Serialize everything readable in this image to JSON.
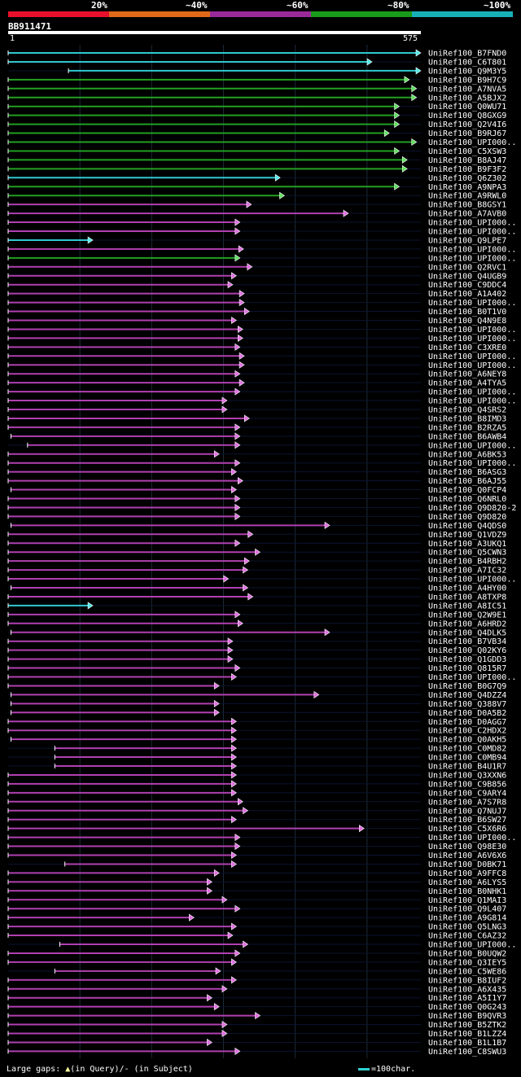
{
  "header": {
    "percent_labels": [
      "20%",
      "~40%",
      "~60%",
      "~80%",
      "~100%"
    ],
    "colors": [
      "#e8102a",
      "#e06a1a",
      "#9a2a9a",
      "#1a9a1a",
      "#18b0b8"
    ],
    "query_id": "BB911471",
    "start": "1",
    "end": "575"
  },
  "legend": {
    "text_prefix": "Large gaps: ",
    "gap_query_marker": "▲",
    "gap_query_text": "(in Query)/",
    "gap_subject_text": "- (in Subject)",
    "scale_text": "=100char."
  },
  "chart_data": {
    "type": "alignment",
    "query_length": 575,
    "hits": [
      {
        "label": "UniRef100_B7FND0",
        "start": 1,
        "end": 575,
        "color": "cyan"
      },
      {
        "label": "UniRef100_C6T801",
        "start": 1,
        "end": 507,
        "color": "cyan"
      },
      {
        "label": "UniRef100_Q9M3Y5",
        "start": 85,
        "end": 575,
        "color": "cyan"
      },
      {
        "label": "UniRef100_B9H7C9",
        "start": 1,
        "end": 559,
        "color": "green"
      },
      {
        "label": "UniRef100_A7NVA5",
        "start": 1,
        "end": 569,
        "color": "green"
      },
      {
        "label": "UniRef100_A5BJX2",
        "start": 1,
        "end": 569,
        "color": "green"
      },
      {
        "label": "UniRef100_Q0WU71",
        "start": 1,
        "end": 545,
        "color": "green"
      },
      {
        "label": "UniRef100_Q8GXG9",
        "start": 1,
        "end": 545,
        "color": "green"
      },
      {
        "label": "UniRef100_Q2V4I6",
        "start": 1,
        "end": 545,
        "color": "green"
      },
      {
        "label": "UniRef100_B9RJ67",
        "start": 1,
        "end": 531,
        "color": "green"
      },
      {
        "label": "UniRef100_UPI000..",
        "start": 1,
        "end": 569,
        "color": "green"
      },
      {
        "label": "UniRef100_C5XSW3",
        "start": 1,
        "end": 545,
        "color": "green"
      },
      {
        "label": "UniRef100_B8AJ47",
        "start": 1,
        "end": 556,
        "color": "green"
      },
      {
        "label": "UniRef100_B9F3F2",
        "start": 1,
        "end": 556,
        "color": "green"
      },
      {
        "label": "UniRef100_Q6Z302",
        "start": 1,
        "end": 379,
        "color": "cyan"
      },
      {
        "label": "UniRef100_A9NPA3",
        "start": 1,
        "end": 545,
        "color": "green"
      },
      {
        "label": "UniRef100_A9RWL0",
        "start": 1,
        "end": 385,
        "color": "green"
      },
      {
        "label": "UniRef100_B8GSY1",
        "start": 1,
        "end": 339,
        "color": "magenta"
      },
      {
        "label": "UniRef100_A7AVB0",
        "start": 1,
        "end": 474,
        "color": "magenta"
      },
      {
        "label": "UniRef100_UPI000..",
        "start": 1,
        "end": 323,
        "color": "magenta"
      },
      {
        "label": "UniRef100_UPI000..",
        "start": 1,
        "end": 323,
        "color": "magenta"
      },
      {
        "label": "UniRef100_Q9LPE7",
        "start": 1,
        "end": 118,
        "color": "cyan"
      },
      {
        "label": "UniRef100_UPI000..",
        "start": 1,
        "end": 328,
        "color": "magenta"
      },
      {
        "label": "UniRef100_UPI000..",
        "start": 1,
        "end": 323,
        "color": "green"
      },
      {
        "label": "UniRef100_Q2RVC1",
        "start": 1,
        "end": 340,
        "color": "magenta"
      },
      {
        "label": "UniRef100_Q4UGB9",
        "start": 1,
        "end": 318,
        "color": "magenta"
      },
      {
        "label": "UniRef100_C9DDC4",
        "start": 1,
        "end": 313,
        "color": "magenta"
      },
      {
        "label": "UniRef100_A1A402",
        "start": 1,
        "end": 329,
        "color": "magenta"
      },
      {
        "label": "UniRef100_UPI000..",
        "start": 1,
        "end": 329,
        "color": "magenta"
      },
      {
        "label": "UniRef100_B0T1V0",
        "start": 1,
        "end": 336,
        "color": "magenta"
      },
      {
        "label": "UniRef100_Q4N9E8",
        "start": 1,
        "end": 318,
        "color": "magenta"
      },
      {
        "label": "UniRef100_UPI000..",
        "start": 1,
        "end": 327,
        "color": "magenta"
      },
      {
        "label": "UniRef100_UPI000..",
        "start": 1,
        "end": 327,
        "color": "magenta"
      },
      {
        "label": "UniRef100_C3XRE0",
        "start": 1,
        "end": 323,
        "color": "magenta"
      },
      {
        "label": "UniRef100_UPI000..",
        "start": 1,
        "end": 329,
        "color": "magenta"
      },
      {
        "label": "UniRef100_UPI000..",
        "start": 1,
        "end": 329,
        "color": "magenta"
      },
      {
        "label": "UniRef100_A6NEY8",
        "start": 1,
        "end": 323,
        "color": "magenta"
      },
      {
        "label": "UniRef100_A4TYA5",
        "start": 1,
        "end": 329,
        "color": "magenta"
      },
      {
        "label": "UniRef100_UPI000..",
        "start": 1,
        "end": 323,
        "color": "magenta"
      },
      {
        "label": "UniRef100_UPI000..",
        "start": 1,
        "end": 305,
        "color": "magenta"
      },
      {
        "label": "UniRef100_Q4SRS2",
        "start": 1,
        "end": 305,
        "color": "magenta"
      },
      {
        "label": "UniRef100_B8IMD3",
        "start": 1,
        "end": 336,
        "color": "magenta"
      },
      {
        "label": "UniRef100_B2RZA5",
        "start": 1,
        "end": 323,
        "color": "magenta"
      },
      {
        "label": "UniRef100_B6AWB4",
        "start": 5,
        "end": 323,
        "color": "magenta"
      },
      {
        "label": "UniRef100_UPI000..",
        "start": 28,
        "end": 323,
        "color": "magenta"
      },
      {
        "label": "UniRef100_A6BK53",
        "start": 1,
        "end": 294,
        "color": "magenta"
      },
      {
        "label": "UniRef100_UPI000..",
        "start": 1,
        "end": 323,
        "color": "magenta"
      },
      {
        "label": "UniRef100_B6ASG3",
        "start": 1,
        "end": 318,
        "color": "magenta"
      },
      {
        "label": "UniRef100_B6AJ55",
        "start": 1,
        "end": 327,
        "color": "magenta"
      },
      {
        "label": "UniRef100_Q0FCP4",
        "start": 5,
        "end": 318,
        "color": "magenta"
      },
      {
        "label": "UniRef100_Q6NRL0",
        "start": 1,
        "end": 323,
        "color": "magenta"
      },
      {
        "label": "UniRef100_Q9D820-2",
        "start": 1,
        "end": 323,
        "color": "magenta"
      },
      {
        "label": "UniRef100_Q9D820",
        "start": 1,
        "end": 323,
        "color": "magenta"
      },
      {
        "label": "UniRef100_Q4QDS0",
        "start": 5,
        "end": 448,
        "color": "magenta"
      },
      {
        "label": "UniRef100_Q1VDZ9",
        "start": 1,
        "end": 341,
        "color": "magenta"
      },
      {
        "label": "UniRef100_A3UKQ1",
        "start": 1,
        "end": 323,
        "color": "magenta"
      },
      {
        "label": "UniRef100_Q5CWN3",
        "start": 1,
        "end": 351,
        "color": "magenta"
      },
      {
        "label": "UniRef100_B4RBH2",
        "start": 1,
        "end": 336,
        "color": "magenta"
      },
      {
        "label": "UniRef100_A7IC32",
        "start": 1,
        "end": 334,
        "color": "magenta"
      },
      {
        "label": "UniRef100_UPI000..",
        "start": 1,
        "end": 307,
        "color": "magenta"
      },
      {
        "label": "UniRef100_A4HY00",
        "start": 5,
        "end": 334,
        "color": "magenta"
      },
      {
        "label": "UniRef100_A8TXP8",
        "start": 1,
        "end": 341,
        "color": "magenta"
      },
      {
        "label": "UniRef100_A8IC51",
        "start": 1,
        "end": 118,
        "color": "cyan"
      },
      {
        "label": "UniRef100_Q2W9E1",
        "start": 1,
        "end": 323,
        "color": "magenta"
      },
      {
        "label": "UniRef100_A6HRD2",
        "start": 1,
        "end": 327,
        "color": "magenta"
      },
      {
        "label": "UniRef100_Q4DLK5",
        "start": 5,
        "end": 448,
        "color": "magenta"
      },
      {
        "label": "UniRef100_B7VB34",
        "start": 1,
        "end": 313,
        "color": "magenta"
      },
      {
        "label": "UniRef100_Q02KY6",
        "start": 1,
        "end": 313,
        "color": "magenta"
      },
      {
        "label": "UniRef100_Q1GDD3",
        "start": 1,
        "end": 313,
        "color": "magenta"
      },
      {
        "label": "UniRef100_Q815R7",
        "start": 1,
        "end": 323,
        "color": "magenta"
      },
      {
        "label": "UniRef100_UPI000..",
        "start": 1,
        "end": 318,
        "color": "magenta"
      },
      {
        "label": "UniRef100_B0G7Q9",
        "start": 1,
        "end": 294,
        "color": "magenta"
      },
      {
        "label": "UniRef100_Q4DZZ4",
        "start": 5,
        "end": 433,
        "color": "magenta"
      },
      {
        "label": "UniRef100_Q388V7",
        "start": 5,
        "end": 294,
        "color": "magenta"
      },
      {
        "label": "UniRef100_D0A5B2",
        "start": 5,
        "end": 294,
        "color": "magenta"
      },
      {
        "label": "UniRef100_D0AGG7",
        "start": 1,
        "end": 318,
        "color": "magenta"
      },
      {
        "label": "UniRef100_C2HDX2",
        "start": 1,
        "end": 318,
        "color": "magenta"
      },
      {
        "label": "UniRef100_Q0AKH5",
        "start": 5,
        "end": 318,
        "color": "magenta"
      },
      {
        "label": "UniRef100_C0MD82",
        "start": 66,
        "end": 318,
        "color": "magenta"
      },
      {
        "label": "UniRef100_C0MB94",
        "start": 66,
        "end": 318,
        "color": "magenta"
      },
      {
        "label": "UniRef100_B4U1R7",
        "start": 66,
        "end": 318,
        "color": "magenta"
      },
      {
        "label": "UniRef100_Q3XXN6",
        "start": 1,
        "end": 318,
        "color": "magenta"
      },
      {
        "label": "UniRef100_C9B856",
        "start": 1,
        "end": 318,
        "color": "magenta"
      },
      {
        "label": "UniRef100_C9ARY4",
        "start": 1,
        "end": 318,
        "color": "magenta"
      },
      {
        "label": "UniRef100_A7S7R8",
        "start": 1,
        "end": 327,
        "color": "magenta"
      },
      {
        "label": "UniRef100_Q7NUJ7",
        "start": 1,
        "end": 334,
        "color": "magenta"
      },
      {
        "label": "UniRef100_B6SW27",
        "start": 1,
        "end": 318,
        "color": "magenta"
      },
      {
        "label": "UniRef100_C5X6R6",
        "start": 1,
        "end": 496,
        "color": "magenta"
      },
      {
        "label": "UniRef100_UPI000..",
        "start": 1,
        "end": 323,
        "color": "magenta"
      },
      {
        "label": "UniRef100_Q98E30",
        "start": 1,
        "end": 323,
        "color": "magenta"
      },
      {
        "label": "UniRef100_A6V6X6",
        "start": 1,
        "end": 318,
        "color": "magenta"
      },
      {
        "label": "UniRef100_D0BK71",
        "start": 80,
        "end": 318,
        "color": "magenta"
      },
      {
        "label": "UniRef100_A9FFC8",
        "start": 1,
        "end": 294,
        "color": "magenta"
      },
      {
        "label": "UniRef100_A6LYS5",
        "start": 1,
        "end": 284,
        "color": "magenta"
      },
      {
        "label": "UniRef100_B0NHK1",
        "start": 1,
        "end": 284,
        "color": "magenta"
      },
      {
        "label": "UniRef100_Q1MAI3",
        "start": 1,
        "end": 305,
        "color": "magenta"
      },
      {
        "label": "UniRef100_Q9L407",
        "start": 1,
        "end": 323,
        "color": "magenta"
      },
      {
        "label": "UniRef100_A9G814",
        "start": 1,
        "end": 259,
        "color": "magenta"
      },
      {
        "label": "UniRef100_Q5LNG3",
        "start": 1,
        "end": 318,
        "color": "magenta"
      },
      {
        "label": "UniRef100_C6AZ32",
        "start": 1,
        "end": 313,
        "color": "magenta"
      },
      {
        "label": "UniRef100_UPI000..",
        "start": 73,
        "end": 334,
        "color": "magenta"
      },
      {
        "label": "UniRef100_B0UQW2",
        "start": 1,
        "end": 323,
        "color": "magenta"
      },
      {
        "label": "UniRef100_Q3IEY5",
        "start": 1,
        "end": 318,
        "color": "magenta"
      },
      {
        "label": "UniRef100_C5WE86",
        "start": 66,
        "end": 296,
        "color": "magenta"
      },
      {
        "label": "UniRef100_B8IUF2",
        "start": 1,
        "end": 318,
        "color": "magenta"
      },
      {
        "label": "UniRef100_A6X435",
        "start": 1,
        "end": 305,
        "color": "magenta"
      },
      {
        "label": "UniRef100_A5I1Y7",
        "start": 1,
        "end": 284,
        "color": "magenta"
      },
      {
        "label": "UniRef100_Q0G243",
        "start": 1,
        "end": 294,
        "color": "magenta"
      },
      {
        "label": "UniRef100_B9QVR3",
        "start": 1,
        "end": 351,
        "color": "magenta"
      },
      {
        "label": "UniRef100_B5ZTK2",
        "start": 1,
        "end": 305,
        "color": "magenta"
      },
      {
        "label": "UniRef100_B1LZZ4",
        "start": 1,
        "end": 305,
        "color": "magenta"
      },
      {
        "label": "UniRef100_B1L1B7",
        "start": 1,
        "end": 284,
        "color": "magenta"
      },
      {
        "label": "UniRef100_C8SWU3",
        "start": 1,
        "end": 323,
        "color": "magenta"
      }
    ]
  }
}
